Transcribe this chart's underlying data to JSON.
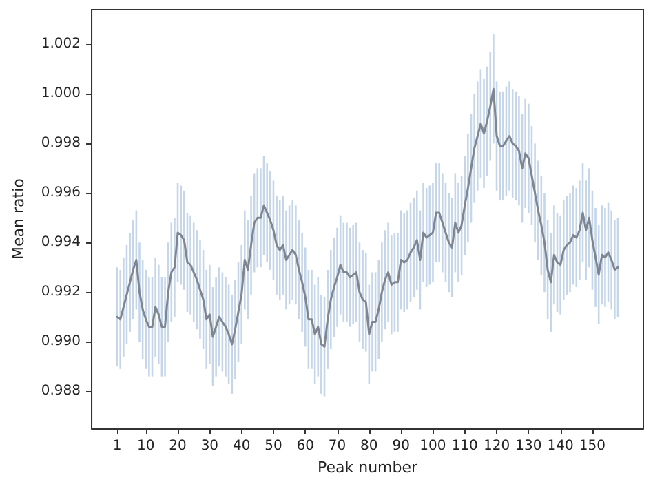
{
  "chart_data": {
    "type": "line",
    "xlabel": "Peak number",
    "ylabel": "Mean ratio",
    "x": [
      1,
      2,
      3,
      4,
      5,
      6,
      7,
      8,
      9,
      10,
      11,
      12,
      13,
      14,
      15,
      16,
      17,
      18,
      19,
      20,
      21,
      22,
      23,
      24,
      25,
      26,
      27,
      28,
      29,
      30,
      31,
      32,
      33,
      34,
      35,
      36,
      37,
      38,
      39,
      40,
      41,
      42,
      43,
      44,
      45,
      46,
      47,
      48,
      49,
      50,
      51,
      52,
      53,
      54,
      55,
      56,
      57,
      58,
      59,
      60,
      61,
      62,
      63,
      64,
      65,
      66,
      67,
      68,
      69,
      70,
      71,
      72,
      73,
      74,
      75,
      76,
      77,
      78,
      79,
      80,
      81,
      82,
      83,
      84,
      85,
      86,
      87,
      88,
      89,
      90,
      91,
      92,
      93,
      94,
      95,
      96,
      97,
      98,
      99,
      100,
      101,
      102,
      103,
      104,
      105,
      106,
      107,
      108,
      109,
      110,
      111,
      112,
      113,
      114,
      115,
      116,
      117,
      118,
      119,
      120,
      121,
      122,
      123,
      124,
      125,
      126,
      127,
      128,
      129,
      130,
      131,
      132,
      133,
      134,
      135,
      136,
      137,
      138,
      139,
      140,
      141,
      142,
      143,
      144,
      145,
      146,
      147,
      148,
      149,
      150,
      151,
      152,
      153,
      154,
      155,
      156,
      157,
      158
    ],
    "series": [
      {
        "color": "#7f8691",
        "values": [
          0.991,
          0.9909,
          0.9914,
          0.9919,
          0.9924,
          0.9929,
          0.9933,
          0.992,
          0.9913,
          0.9909,
          0.9906,
          0.9906,
          0.9914,
          0.9911,
          0.9906,
          0.9906,
          0.992,
          0.9928,
          0.993,
          0.9944,
          0.9943,
          0.9941,
          0.9932,
          0.9931,
          0.9928,
          0.9925,
          0.9921,
          0.9917,
          0.9909,
          0.9911,
          0.9902,
          0.9906,
          0.991,
          0.9908,
          0.9906,
          0.9903,
          0.9899,
          0.9905,
          0.9912,
          0.9919,
          0.9933,
          0.9929,
          0.9939,
          0.9948,
          0.995,
          0.995,
          0.9955,
          0.9952,
          0.9949,
          0.9945,
          0.9939,
          0.9937,
          0.9939,
          0.9933,
          0.9935,
          0.9937,
          0.9935,
          0.9929,
          0.9924,
          0.9918,
          0.9909,
          0.9909,
          0.9903,
          0.9906,
          0.9899,
          0.9898,
          0.9909,
          0.9917,
          0.9922,
          0.9926,
          0.9931,
          0.9928,
          0.9928,
          0.9926,
          0.9927,
          0.9928,
          0.992,
          0.9917,
          0.9916,
          0.9903,
          0.9908,
          0.9908,
          0.9913,
          0.992,
          0.9925,
          0.9928,
          0.9923,
          0.9924,
          0.9924,
          0.9933,
          0.9932,
          0.9933,
          0.9936,
          0.9938,
          0.9941,
          0.9933,
          0.9944,
          0.9942,
          0.9943,
          0.9944,
          0.9952,
          0.9952,
          0.9948,
          0.9944,
          0.994,
          0.9938,
          0.9948,
          0.9944,
          0.9947,
          0.9955,
          0.9962,
          0.997,
          0.9978,
          0.9983,
          0.9988,
          0.9984,
          0.9989,
          0.9995,
          1.0002,
          0.9983,
          0.9979,
          0.9979,
          0.9981,
          0.9983,
          0.998,
          0.9979,
          0.9977,
          0.997,
          0.9976,
          0.9974,
          0.9967,
          0.996,
          0.9953,
          0.9947,
          0.994,
          0.9929,
          0.9924,
          0.9935,
          0.9932,
          0.9931,
          0.9937,
          0.9939,
          0.994,
          0.9943,
          0.9942,
          0.9945,
          0.9952,
          0.9945,
          0.995,
          0.9941,
          0.9934,
          0.9927,
          0.9935,
          0.9934,
          0.9936,
          0.9933,
          0.9929,
          0.993
        ],
        "errors": [
          0.002,
          0.002,
          0.002,
          0.002,
          0.002,
          0.002,
          0.002,
          0.002,
          0.002,
          0.002,
          0.002,
          0.002,
          0.002,
          0.002,
          0.002,
          0.002,
          0.002,
          0.002,
          0.002,
          0.002,
          0.002,
          0.002,
          0.002,
          0.002,
          0.002,
          0.002,
          0.002,
          0.002,
          0.002,
          0.002,
          0.002,
          0.002,
          0.002,
          0.002,
          0.002,
          0.002,
          0.002,
          0.002,
          0.002,
          0.002,
          0.002,
          0.002,
          0.002,
          0.002,
          0.002,
          0.002,
          0.002,
          0.002,
          0.002,
          0.002,
          0.002,
          0.002,
          0.002,
          0.002,
          0.002,
          0.002,
          0.002,
          0.002,
          0.002,
          0.002,
          0.002,
          0.002,
          0.002,
          0.002,
          0.002,
          0.002,
          0.002,
          0.002,
          0.002,
          0.002,
          0.002,
          0.002,
          0.002,
          0.002,
          0.002,
          0.002,
          0.002,
          0.002,
          0.002,
          0.002,
          0.002,
          0.002,
          0.002,
          0.002,
          0.002,
          0.002,
          0.002,
          0.002,
          0.002,
          0.002,
          0.002,
          0.002,
          0.002,
          0.002,
          0.002,
          0.002,
          0.002,
          0.002,
          0.002,
          0.002,
          0.002,
          0.002,
          0.002,
          0.002,
          0.002,
          0.002,
          0.002,
          0.002,
          0.002,
          0.002,
          0.0022,
          0.0022,
          0.0022,
          0.0022,
          0.0022,
          0.0022,
          0.0022,
          0.0022,
          0.0022,
          0.0022,
          0.0022,
          0.0022,
          0.0022,
          0.0022,
          0.0022,
          0.0022,
          0.0022,
          0.0022,
          0.0022,
          0.0022,
          0.002,
          0.002,
          0.002,
          0.002,
          0.002,
          0.002,
          0.002,
          0.002,
          0.002,
          0.002,
          0.002,
          0.002,
          0.002,
          0.002,
          0.002,
          0.002,
          0.002,
          0.002,
          0.002,
          0.002,
          0.002,
          0.002,
          0.002,
          0.002,
          0.002,
          0.002,
          0.002,
          0.002
        ]
      }
    ],
    "xlim": [
      -7,
      166
    ],
    "xticks": [
      1,
      10,
      20,
      30,
      40,
      50,
      60,
      70,
      80,
      90,
      100,
      110,
      120,
      130,
      140,
      150
    ],
    "ylim": [
      0.9865,
      1.0034
    ],
    "yticks": [
      0.988,
      {
        "value": 0.99,
        "label": "0.990"
      },
      0.992,
      0.994,
      0.996,
      0.998,
      {
        "value": 1,
        "label": "1.000"
      },
      1.002
    ],
    "grid": false,
    "marker": "none",
    "line_style": "solid"
  }
}
